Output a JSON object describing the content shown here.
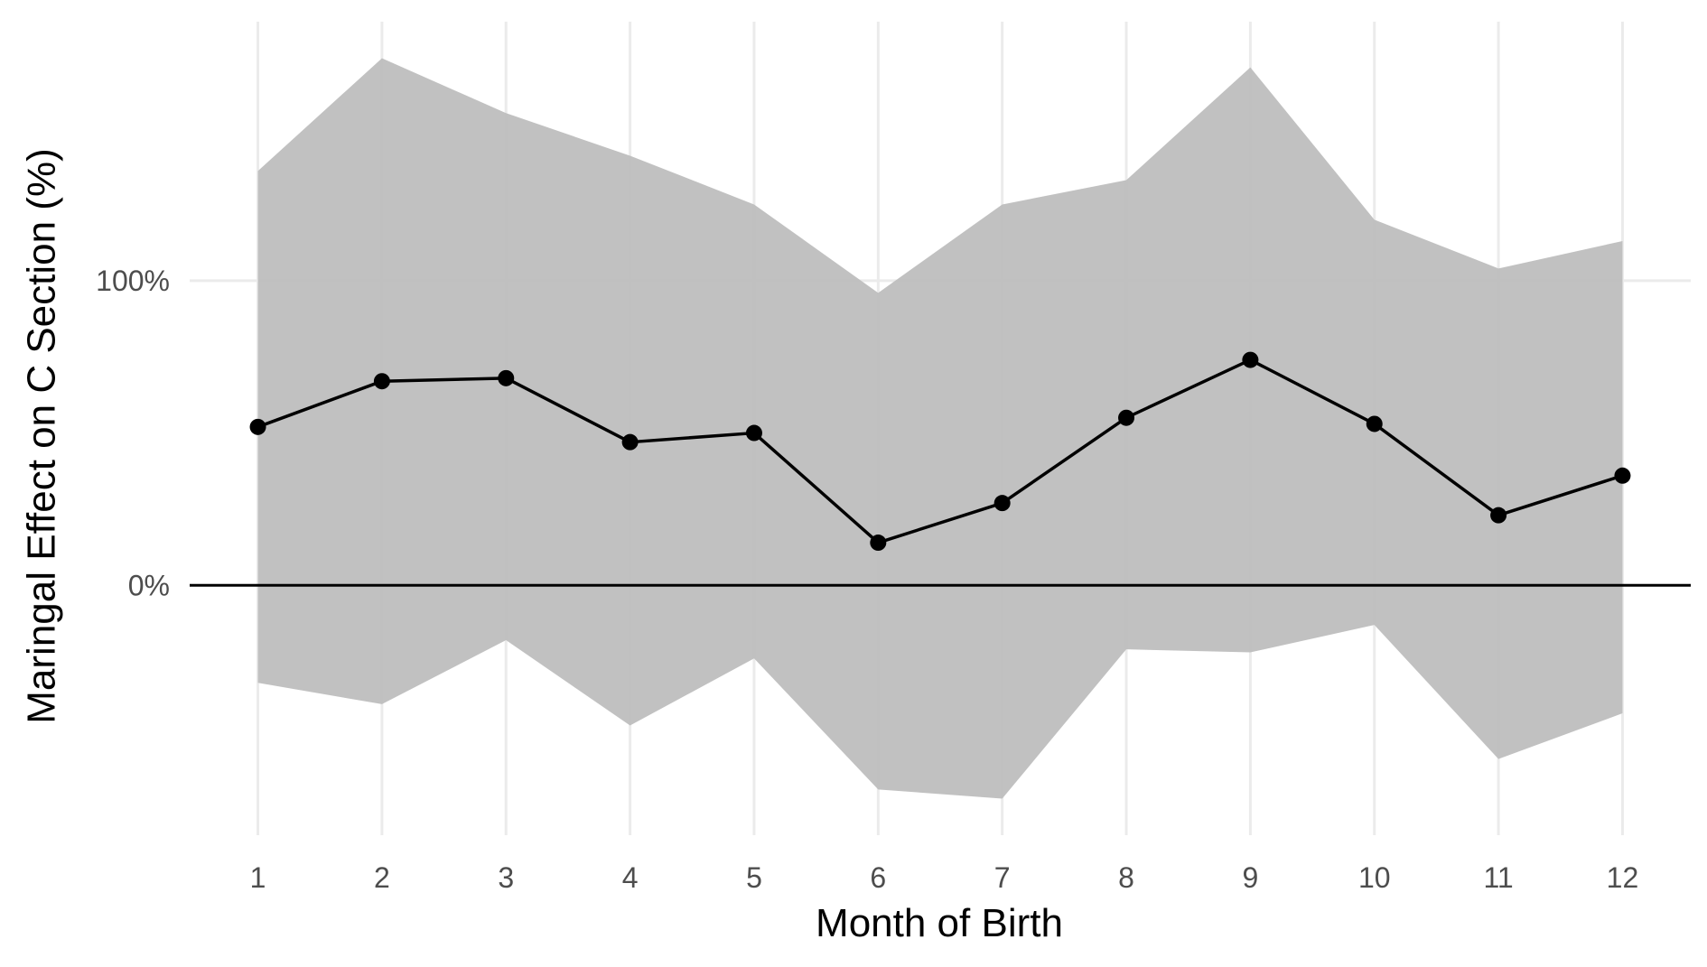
{
  "chart_data": {
    "type": "line",
    "xlabel": "Month of Birth",
    "ylabel": "Maringal Effect on C Section (%)",
    "x": [
      1,
      2,
      3,
      4,
      5,
      6,
      7,
      8,
      9,
      10,
      11,
      12
    ],
    "x_tick_labels": [
      "1",
      "2",
      "3",
      "4",
      "5",
      "6",
      "7",
      "8",
      "9",
      "10",
      "11",
      "12"
    ],
    "y_ticks": [
      0,
      100
    ],
    "y_tick_labels": [
      "0%",
      "100%"
    ],
    "xlim": [
      0.45,
      12.55
    ],
    "ylim": [
      -82,
      185
    ],
    "series": [
      {
        "values": [
          52,
          67,
          68,
          47,
          50,
          14,
          27,
          55,
          74,
          53,
          23,
          36
        ],
        "ci_lower": [
          -32,
          -39,
          -18,
          -46,
          -24,
          -67,
          -70,
          -21,
          -22,
          -13,
          -57,
          -42
        ],
        "ci_upper": [
          136,
          173,
          155,
          141,
          125,
          96,
          125,
          133,
          170,
          120,
          104,
          113
        ]
      }
    ],
    "reference_line_y": 0,
    "grid": true,
    "colors": {
      "band": "#bebebe",
      "line": "#000000",
      "grid": "#ebebeb",
      "tick_text": "#4d4d4d"
    }
  }
}
